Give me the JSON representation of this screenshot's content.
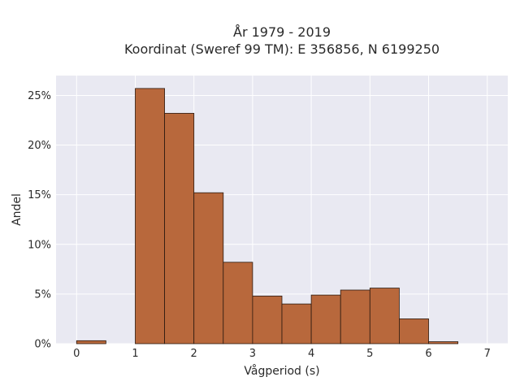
{
  "chart_data": {
    "type": "bar",
    "title_line1": "År 1979 - 2019",
    "title_line2": "Koordinat (Sweref 99 TM): E 356856, N 6199250",
    "xlabel": "Vågperiod (s)",
    "ylabel": "Andel",
    "xlim": [
      -0.35,
      7.35
    ],
    "ylim": [
      0,
      27
    ],
    "x_ticks": [
      0,
      1,
      2,
      3,
      4,
      5,
      6,
      7
    ],
    "y_ticks": [
      0,
      5,
      10,
      15,
      20,
      25
    ],
    "y_tick_labels": [
      "0%",
      "5%",
      "10%",
      "15%",
      "20%",
      "25%"
    ],
    "grid": true,
    "bar_color": "#b8683c",
    "bar_edge_color": "#2b1a10",
    "plot_background": "#e9e9f2",
    "bins": [
      {
        "x0": 0.0,
        "x1": 0.5,
        "value": 0.3
      },
      {
        "x0": 1.0,
        "x1": 1.5,
        "value": 25.7
      },
      {
        "x0": 1.5,
        "x1": 2.0,
        "value": 23.2
      },
      {
        "x0": 2.0,
        "x1": 2.5,
        "value": 15.2
      },
      {
        "x0": 2.5,
        "x1": 3.0,
        "value": 8.2
      },
      {
        "x0": 3.0,
        "x1": 3.5,
        "value": 4.8
      },
      {
        "x0": 3.5,
        "x1": 4.0,
        "value": 4.0
      },
      {
        "x0": 4.0,
        "x1": 4.5,
        "value": 4.9
      },
      {
        "x0": 4.5,
        "x1": 5.0,
        "value": 5.4
      },
      {
        "x0": 5.0,
        "x1": 5.5,
        "value": 5.6
      },
      {
        "x0": 5.5,
        "x1": 6.0,
        "value": 2.5
      },
      {
        "x0": 6.0,
        "x1": 6.5,
        "value": 0.2
      }
    ]
  }
}
